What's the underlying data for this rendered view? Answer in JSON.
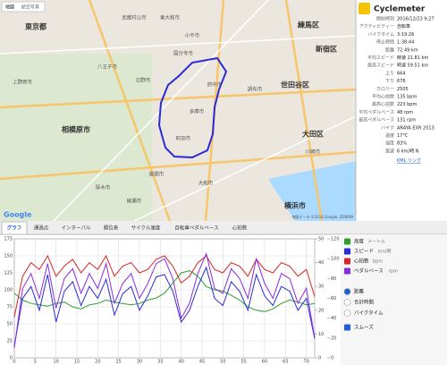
{
  "map": {
    "tabs": [
      "地図",
      "航空写真"
    ],
    "labels": [
      "東京都",
      "武蔵村山市",
      "東大和市",
      "練馬区",
      "新宿区",
      "小平市",
      "国分寺市",
      "府中市",
      "調布市",
      "世田谷区",
      "八王子市",
      "日野市",
      "多摩市",
      "相模原市",
      "町田市",
      "大和市",
      "大田区",
      "川崎市",
      "横浜市",
      "厚木市",
      "座間市",
      "綾瀬市",
      "上野原市"
    ],
    "logo": "Google",
    "attribution": "地図データ ©2016 Google, ZENRIN"
  },
  "stats": {
    "app_name": "Cyclemeter",
    "rows": [
      [
        "開始時刻",
        "2016/12/23 9:27"
      ],
      [
        "アクティビティー",
        "自転車"
      ],
      [
        "バイクタイム",
        "3:19:26"
      ],
      [
        "停止時間",
        "1:38:44"
      ],
      [
        "距離",
        "72.49 km"
      ],
      [
        "平均スピード",
        "時速 21.81 km"
      ],
      [
        "最高スピード",
        "時速 59.51 km"
      ],
      [
        "上り",
        "664"
      ],
      [
        "下り",
        "676"
      ],
      [
        "カロリー",
        "2505"
      ],
      [
        "平均心拍数",
        "135 bpm"
      ],
      [
        "最高心拍数",
        "223 bpm"
      ],
      [
        "平均ペダルベース",
        "48 rpm"
      ],
      [
        "最高ペダルベース",
        "131 rpm"
      ],
      [
        "バイク",
        "ARAYA EXR 2013"
      ],
      [
        "温度",
        "17°C"
      ],
      [
        "湿度",
        "83%"
      ],
      [
        "風速",
        "6 km/時 N"
      ]
    ],
    "link": "KML リンク"
  },
  "tabs": [
    "グラフ",
    "通過点",
    "インターバル",
    "順位表",
    "サイクル速度",
    "自転車ペダルベース",
    "心拍数"
  ],
  "chart_data": {
    "type": "line",
    "x": [
      0,
      2,
      4,
      6,
      8,
      10,
      12,
      14,
      16,
      18,
      20,
      22,
      24,
      26,
      28,
      30,
      32,
      34,
      36,
      38,
      40,
      42,
      44,
      46,
      48,
      50,
      52,
      54,
      56,
      58,
      60,
      62,
      64,
      66,
      68,
      70,
      72
    ],
    "xlim": [
      0,
      72
    ],
    "xticks": [
      0,
      5,
      10,
      15,
      20,
      25,
      30,
      35,
      40,
      45,
      50,
      55,
      60,
      65,
      70
    ],
    "ylim": [
      0,
      175
    ],
    "yticks": [
      0,
      25,
      50,
      75,
      100,
      125,
      150,
      175
    ],
    "y2lim": [
      0,
      50
    ],
    "y2ticks": [
      0,
      10,
      20,
      30,
      40,
      50
    ],
    "y3lim": [
      0,
      120
    ],
    "y3ticks": [
      0,
      20,
      40,
      60,
      80,
      100,
      120
    ],
    "grid": true,
    "series": [
      {
        "name": "高度",
        "unit": "メートル",
        "color": "#2ca02c",
        "axis": "y",
        "values": [
          95,
          85,
          80,
          78,
          76,
          80,
          82,
          75,
          72,
          78,
          80,
          85,
          82,
          80,
          78,
          80,
          85,
          88,
          95,
          110,
          125,
          128,
          120,
          105,
          100,
          98,
          92,
          85,
          75,
          70,
          68,
          72,
          80,
          85,
          82,
          78,
          80
        ]
      },
      {
        "name": "スピード",
        "unit": "km/時",
        "color": "#2b2bd6",
        "axis": "y2",
        "values": [
          5,
          25,
          30,
          20,
          35,
          15,
          28,
          32,
          22,
          30,
          25,
          33,
          18,
          27,
          30,
          20,
          26,
          34,
          35,
          28,
          15,
          20,
          30,
          38,
          25,
          22,
          32,
          28,
          20,
          35,
          26,
          22,
          30,
          28,
          20,
          25,
          8
        ]
      },
      {
        "name": "心拍数",
        "unit": "bpm",
        "color": "#d62728",
        "axis": "y",
        "values": [
          60,
          120,
          140,
          130,
          150,
          120,
          135,
          145,
          125,
          140,
          130,
          150,
          120,
          135,
          140,
          125,
          130,
          145,
          150,
          135,
          110,
          120,
          140,
          150,
          130,
          125,
          140,
          135,
          120,
          145,
          130,
          125,
          140,
          135,
          120,
          130,
          90
        ]
      },
      {
        "name": "ペダルベース",
        "unit": "rpm",
        "color": "#8a2be2",
        "axis": "y3",
        "values": [
          10,
          70,
          85,
          60,
          95,
          50,
          80,
          90,
          65,
          85,
          70,
          95,
          55,
          75,
          85,
          60,
          75,
          95,
          100,
          80,
          40,
          55,
          85,
          105,
          70,
          65,
          90,
          80,
          60,
          100,
          75,
          60,
          85,
          80,
          55,
          70,
          20
        ]
      }
    ]
  },
  "legend": {
    "x_options": [
      "距離",
      "合計時間",
      "バイクタイム"
    ],
    "smooth": "スムーズ"
  }
}
